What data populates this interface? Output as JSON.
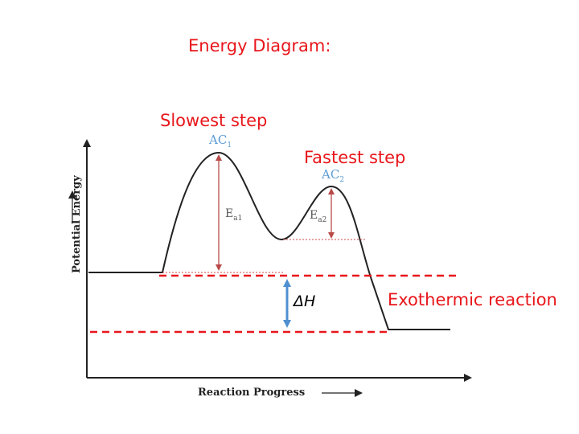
{
  "title": "Energy Diagram:",
  "slowest_step": "Slowest step",
  "fastest_step": "Fastest step",
  "ac1": {
    "base": "AC",
    "sub": "1"
  },
  "ac2": {
    "base": "AC",
    "sub": "2"
  },
  "ea1": {
    "base": "E",
    "sub": "a1"
  },
  "ea2": {
    "base": "E",
    "sub": "a2"
  },
  "delta_h": "ΔH",
  "reaction_type": "Exothermic reaction",
  "x_axis_label": "Reaction Progress",
  "y_axis_label": "Potential Energy",
  "colors": {
    "annotation": "#e8161b",
    "arrow": "#c0504d",
    "delta_h_arrow": "#4f8fd0",
    "curve": "#222222",
    "ac_label": "#5b9bd5"
  }
}
